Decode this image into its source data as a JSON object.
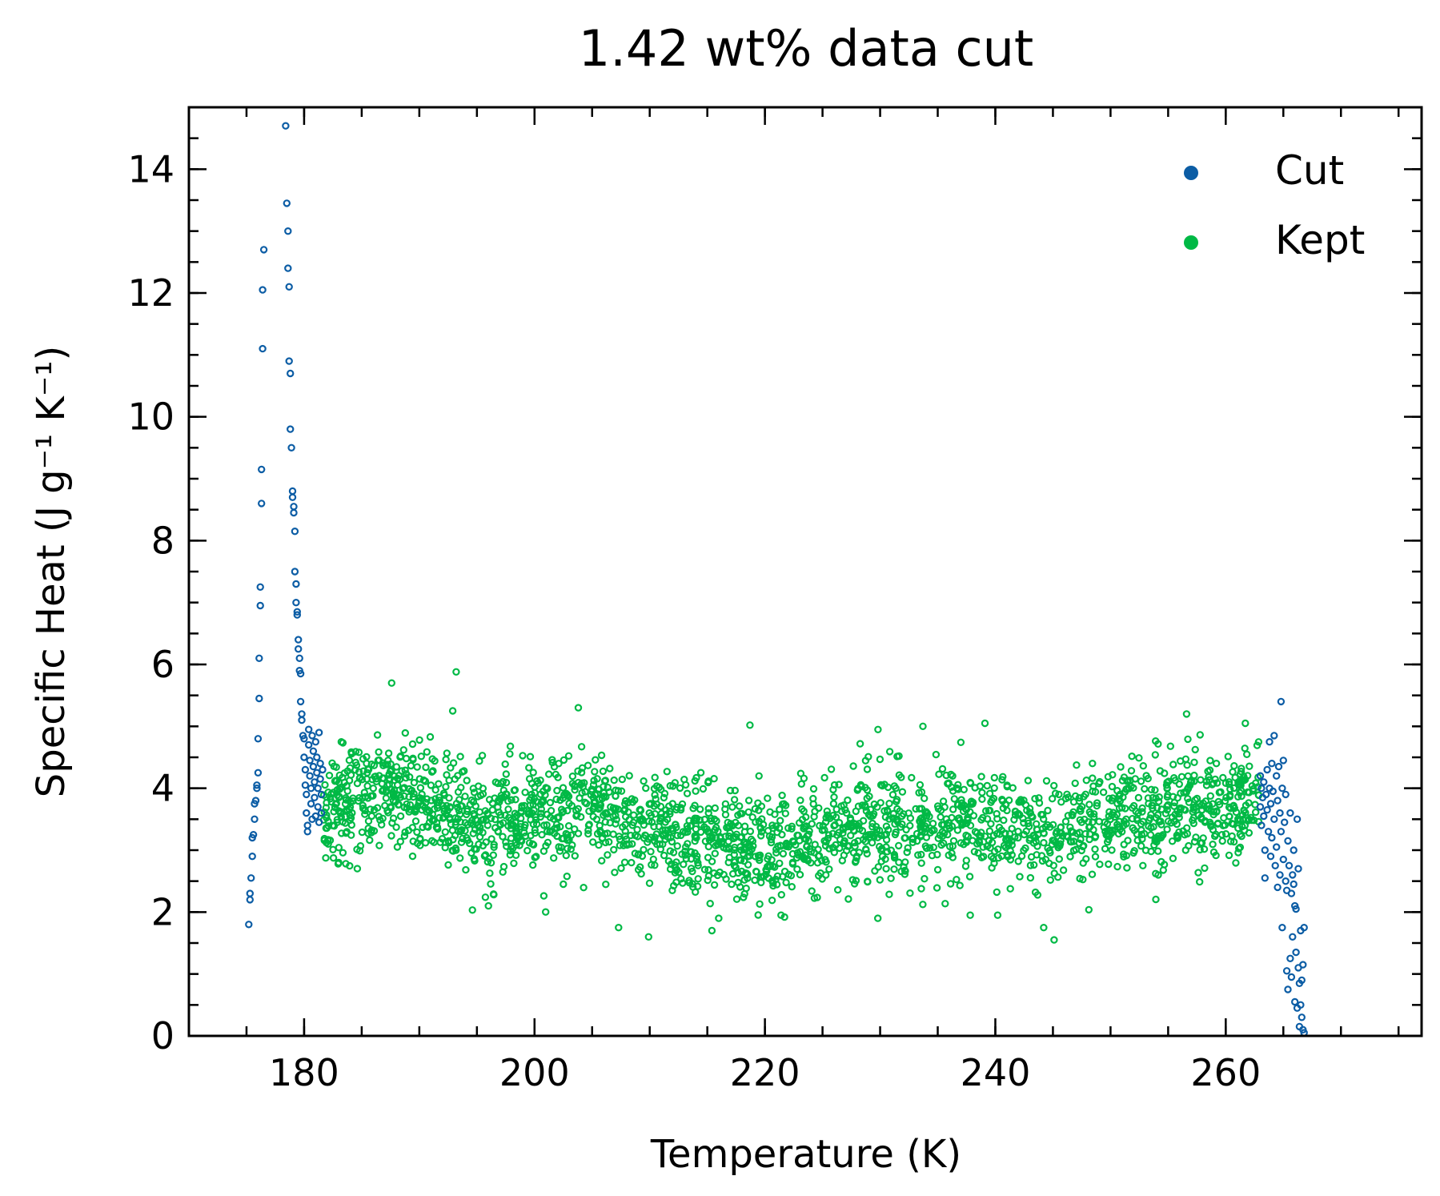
{
  "chart_data": {
    "type": "scatter",
    "title": "1.42 wt% data cut",
    "xlabel": "Temperature (K)",
    "ylabel": "Specific Heat (J g⁻¹ K⁻¹)",
    "xlim": [
      170,
      277
    ],
    "ylim": [
      0,
      15
    ],
    "x_major_ticks": [
      180,
      200,
      220,
      240,
      260
    ],
    "x_tick_labels": [
      "180",
      "200",
      "220",
      "240",
      "260"
    ],
    "y_major_ticks": [
      0,
      2,
      4,
      6,
      8,
      10,
      12,
      14
    ],
    "y_tick_labels": [
      "0",
      "2",
      "4",
      "6",
      "8",
      "10",
      "12",
      "14"
    ],
    "x_minor_step": 5,
    "y_minor_step": 0.5,
    "grid": false,
    "ticks_direction": "in",
    "legend_position": "top-right",
    "series": [
      {
        "name": "Cut",
        "color": "#0c5da5",
        "marker": "open-circle",
        "points": [
          [
            175.2,
            1.8
          ],
          [
            175.3,
            2.2
          ],
          [
            175.3,
            2.3
          ],
          [
            175.4,
            2.55
          ],
          [
            175.5,
            2.9
          ],
          [
            175.5,
            3.2
          ],
          [
            175.6,
            3.25
          ],
          [
            175.7,
            3.5
          ],
          [
            175.7,
            3.75
          ],
          [
            175.8,
            3.8
          ],
          [
            175.9,
            4.0
          ],
          [
            175.9,
            4.05
          ],
          [
            176.0,
            4.25
          ],
          [
            176.0,
            4.8
          ],
          [
            176.1,
            5.45
          ],
          [
            176.1,
            6.1
          ],
          [
            176.2,
            6.95
          ],
          [
            176.2,
            7.25
          ],
          [
            176.3,
            8.6
          ],
          [
            176.3,
            9.15
          ],
          [
            176.4,
            11.1
          ],
          [
            176.4,
            12.05
          ],
          [
            176.5,
            12.7
          ],
          [
            178.4,
            14.7
          ],
          [
            178.5,
            13.45
          ],
          [
            178.6,
            13.0
          ],
          [
            178.6,
            12.4
          ],
          [
            178.7,
            12.1
          ],
          [
            178.7,
            10.9
          ],
          [
            178.8,
            10.7
          ],
          [
            178.8,
            9.8
          ],
          [
            178.9,
            9.5
          ],
          [
            179.0,
            8.8
          ],
          [
            179.0,
            8.7
          ],
          [
            179.1,
            8.55
          ],
          [
            179.1,
            8.45
          ],
          [
            179.2,
            8.15
          ],
          [
            179.2,
            7.5
          ],
          [
            179.3,
            7.3
          ],
          [
            179.3,
            7.0
          ],
          [
            179.4,
            6.85
          ],
          [
            179.4,
            6.8
          ],
          [
            179.5,
            6.4
          ],
          [
            179.5,
            6.25
          ],
          [
            179.6,
            6.1
          ],
          [
            179.6,
            5.9
          ],
          [
            179.7,
            5.85
          ],
          [
            179.7,
            5.4
          ],
          [
            179.8,
            5.2
          ],
          [
            179.8,
            5.1
          ],
          [
            179.9,
            4.85
          ],
          [
            180.0,
            4.8
          ],
          [
            180.0,
            4.5
          ],
          [
            180.1,
            4.3
          ],
          [
            180.1,
            4.05
          ],
          [
            180.2,
            3.9
          ],
          [
            180.2,
            3.6
          ],
          [
            180.3,
            3.4
          ],
          [
            180.3,
            3.3
          ],
          [
            180.4,
            4.95
          ],
          [
            180.4,
            4.7
          ],
          [
            180.5,
            4.45
          ],
          [
            180.5,
            4.2
          ],
          [
            180.6,
            4.0
          ],
          [
            180.6,
            3.75
          ],
          [
            180.7,
            3.5
          ],
          [
            180.7,
            4.85
          ],
          [
            180.8,
            4.6
          ],
          [
            180.8,
            4.35
          ],
          [
            180.9,
            4.1
          ],
          [
            180.9,
            3.85
          ],
          [
            181.0,
            3.55
          ],
          [
            181.0,
            4.75
          ],
          [
            181.1,
            4.5
          ],
          [
            181.1,
            4.25
          ],
          [
            181.2,
            4.0
          ],
          [
            181.2,
            3.7
          ],
          [
            181.3,
            3.45
          ],
          [
            181.3,
            4.9
          ],
          [
            181.4,
            4.4
          ],
          [
            181.4,
            4.15
          ],
          [
            181.5,
            3.9
          ],
          [
            181.5,
            3.6
          ],
          [
            181.6,
            4.3
          ],
          [
            263.0,
            4.2
          ],
          [
            263.0,
            3.7
          ],
          [
            263.1,
            4.0
          ],
          [
            263.1,
            3.4
          ],
          [
            263.2,
            3.85
          ],
          [
            263.3,
            4.1
          ],
          [
            263.3,
            3.55
          ],
          [
            263.4,
            3.0
          ],
          [
            263.4,
            2.55
          ],
          [
            263.5,
            3.9
          ],
          [
            263.6,
            4.3
          ],
          [
            263.6,
            3.65
          ],
          [
            263.7,
            3.3
          ],
          [
            263.8,
            4.75
          ],
          [
            263.8,
            4.0
          ],
          [
            263.9,
            3.75
          ],
          [
            263.9,
            2.9
          ],
          [
            264.0,
            4.4
          ],
          [
            264.0,
            3.2
          ],
          [
            264.1,
            3.95
          ],
          [
            264.2,
            4.85
          ],
          [
            264.2,
            3.5
          ],
          [
            264.3,
            2.75
          ],
          [
            264.4,
            4.2
          ],
          [
            264.4,
            3.05
          ],
          [
            264.5,
            2.4
          ],
          [
            264.5,
            3.8
          ],
          [
            264.6,
            4.35
          ],
          [
            264.7,
            3.6
          ],
          [
            264.7,
            2.6
          ],
          [
            264.8,
            5.4
          ],
          [
            264.8,
            3.3
          ],
          [
            264.9,
            4.0
          ],
          [
            264.9,
            1.75
          ],
          [
            265.0,
            2.85
          ],
          [
            265.0,
            4.45
          ],
          [
            265.1,
            3.45
          ],
          [
            265.2,
            2.5
          ],
          [
            265.2,
            3.9
          ],
          [
            265.3,
            1.05
          ],
          [
            265.3,
            2.35
          ],
          [
            265.4,
            3.15
          ],
          [
            265.4,
            0.75
          ],
          [
            265.5,
            2.75
          ],
          [
            265.6,
            1.25
          ],
          [
            265.6,
            3.6
          ],
          [
            265.7,
            2.3
          ],
          [
            265.7,
            0.95
          ],
          [
            265.8,
            2.6
          ],
          [
            265.8,
            1.6
          ],
          [
            265.9,
            3.0
          ],
          [
            265.9,
            2.45
          ],
          [
            266.0,
            2.1
          ],
          [
            266.0,
            0.55
          ],
          [
            266.1,
            1.35
          ],
          [
            266.1,
            2.05
          ],
          [
            266.2,
            3.5
          ],
          [
            266.2,
            0.45
          ],
          [
            266.3,
            1.1
          ],
          [
            266.3,
            2.7
          ],
          [
            266.4,
            0.85
          ],
          [
            266.4,
            0.15
          ],
          [
            266.5,
            1.7
          ],
          [
            266.5,
            0.5
          ],
          [
            266.6,
            0.9
          ],
          [
            266.6,
            0.3
          ],
          [
            266.7,
            1.15
          ],
          [
            266.7,
            0.1
          ],
          [
            266.8,
            1.75
          ],
          [
            266.8,
            0.05
          ]
        ]
      },
      {
        "name": "Kept",
        "color": "#00b945",
        "marker": "open-circle",
        "generator": {
          "x_start": 181.7,
          "x_end": 262.9,
          "count": 2300,
          "trend_x": [
            181.7,
            188,
            196,
            204,
            212,
            220,
            228,
            236,
            244,
            252,
            262.9
          ],
          "trend_y": [
            3.7,
            3.9,
            3.4,
            3.6,
            3.3,
            3.0,
            3.3,
            3.5,
            3.25,
            3.55,
            3.8
          ],
          "spread": 0.45,
          "seed": 142
        },
        "highlights": [
          [
            187.6,
            5.7
          ],
          [
            193.2,
            5.88
          ],
          [
            192.9,
            5.25
          ],
          [
            203.8,
            5.3
          ],
          [
            196.0,
            2.1
          ],
          [
            207.3,
            1.75
          ],
          [
            209.9,
            1.6
          ],
          [
            215.4,
            1.7
          ],
          [
            218.7,
            5.02
          ],
          [
            221.4,
            1.95
          ],
          [
            229.8,
            1.9
          ],
          [
            239.1,
            5.05
          ],
          [
            240.2,
            1.95
          ],
          [
            244.2,
            1.75
          ],
          [
            245.1,
            1.55
          ],
          [
            256.6,
            5.2
          ],
          [
            261.7,
            5.05
          ],
          [
            183.0,
            2.8
          ],
          [
            182.1,
            3.1
          ]
        ]
      }
    ]
  }
}
